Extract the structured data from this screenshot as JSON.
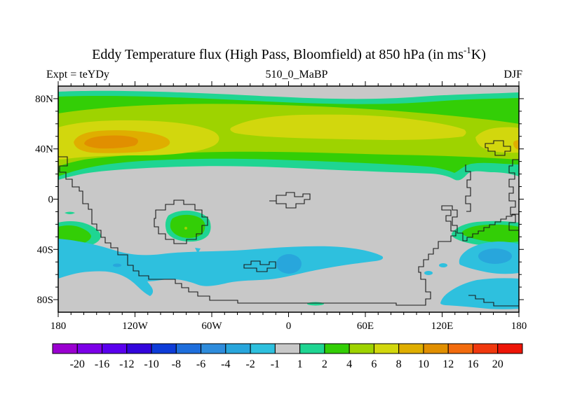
{
  "title": {
    "prefix": "Eddy Temperature flux (High Pass, Bloomfield) at 850 hPa (in ms",
    "superscript": "-1",
    "suffix": "K)"
  },
  "annotations": {
    "left": "Expt = teYDy",
    "center": "510_0_MaBP",
    "right": "DJF"
  },
  "axes": {
    "lat_labels": [
      "80N",
      "40N",
      "0",
      "40S",
      "80S"
    ],
    "lon_labels": [
      "180",
      "120W",
      "60W",
      "0",
      "60E",
      "120E",
      "180"
    ]
  },
  "colorbar": {
    "labels": [
      "-20",
      "-16",
      "-12",
      "-10",
      "-8",
      "-6",
      "-4",
      "-2",
      "-1",
      "1",
      "2",
      "4",
      "6",
      "8",
      "10",
      "12",
      "16",
      "20"
    ],
    "colors": [
      "#9A00D0",
      "#7C00E8",
      "#5A00EE",
      "#3305DC",
      "#0E3CD8",
      "#1E6EDC",
      "#2E8CDC",
      "#28A6DC",
      "#2EC0DE",
      "#C8C8C8",
      "#1FD592",
      "#33CE06",
      "#9ED300",
      "#D2D70D",
      "#DFAE00",
      "#E18F00",
      "#F26B0E",
      "#F0380E",
      "#EE1507"
    ]
  },
  "map_colors": {
    "background": "#C8C8C8",
    "band_1_2": "#1FD592",
    "band_2_4": "#33CE06",
    "band_4_6": "#9ED300",
    "band_6_8": "#D2D70D",
    "band_8_10": "#DFAE00",
    "band_10_12": "#E18F00",
    "band_m2_m1": "#2EC0DE",
    "band_m4_m2": "#28A6DC",
    "coastline": "#1a1a1a"
  },
  "chart_data": {
    "type": "heatmap",
    "subtype": "filled_contour_latlon_map",
    "title": "Eddy Temperature flux (High Pass, Bloomfield) at 850 hPa (in ms-1K)",
    "experiment": "teYDy",
    "period": "510_0_MaBP",
    "season": "DJF",
    "units": "ms-1K",
    "x_axis": {
      "label": "longitude",
      "range_deg": [
        -180,
        180
      ],
      "tick_labels": [
        "180",
        "120W",
        "60W",
        "0",
        "60E",
        "120E",
        "180"
      ],
      "minor_tick_interval_deg": 10
    },
    "y_axis": {
      "label": "latitude",
      "range_deg": [
        -90,
        90
      ],
      "tick_labels": [
        "80N",
        "40N",
        "0",
        "40S",
        "80S"
      ],
      "minor_tick_interval_deg": 10
    },
    "contour_levels": [
      -20,
      -16,
      -12,
      -10,
      -8,
      -6,
      -4,
      -2,
      -1,
      1,
      2,
      4,
      6,
      8,
      10,
      12,
      16,
      20
    ],
    "legend_position": "bottom",
    "grid": false,
    "features": [
      {
        "region": "northern midlatitude band ~25N-88N all longitudes",
        "value_range": [
          1,
          8
        ]
      },
      {
        "region": "NH maximum centered ~45N 135W",
        "value_range": [
          10,
          12
        ]
      },
      {
        "region": "NH secondary yellow band ~55-65N from 30W to 120E and near the dateline ~45N",
        "value_range": [
          6,
          8
        ]
      },
      {
        "region": "southern storm track ~50S-70S from 180W to 60E and 130E-180E",
        "value_range": [
          -2,
          -1
        ]
      },
      {
        "region": "SH minima ~55S 10W and ~35S 165E",
        "value_range": [
          -4,
          -2
        ]
      },
      {
        "region": "positive SH patches ~25S 75W, ~30S 170W, ~25S 160E",
        "value_range": [
          1,
          4
        ]
      },
      {
        "region": "tropics and polar caps",
        "value_range": [
          -1,
          1
        ]
      }
    ]
  }
}
